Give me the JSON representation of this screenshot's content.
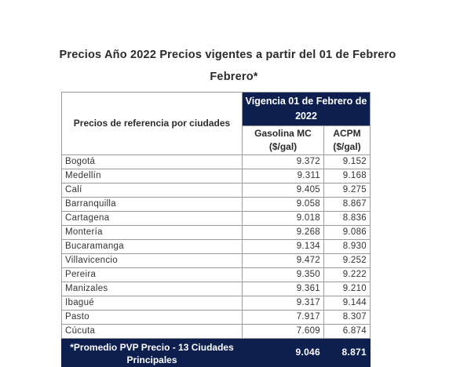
{
  "title_line1": "Precios Año 2022 Precios vigentes a partir del 01 de Febrero",
  "title_line2": "Febrero*",
  "table": {
    "header_city": "Precios de referencia por ciudades",
    "header_vigencia": "Vigencia 01 de Febrero de 2022",
    "header_gas": "Gasolina MC ($/gal)",
    "header_acpm": "ACPM ($/gal)",
    "rows": [
      {
        "city": "Bogotá",
        "gas": "9.372",
        "acpm": "9.152"
      },
      {
        "city": "Medellín",
        "gas": "9.311",
        "acpm": "9.168"
      },
      {
        "city": "Calí",
        "gas": "9.405",
        "acpm": "9.275"
      },
      {
        "city": "Barranquilla",
        "gas": "9.058",
        "acpm": "8.867"
      },
      {
        "city": "Cartagena",
        "gas": "9.018",
        "acpm": "8.836"
      },
      {
        "city": "Montería",
        "gas": "9.268",
        "acpm": "9.086"
      },
      {
        "city": "Bucaramanga",
        "gas": "9.134",
        "acpm": "8.930"
      },
      {
        "city": "Villavicencio",
        "gas": "9.472",
        "acpm": "9.252"
      },
      {
        "city": "Pereira",
        "gas": "9.350",
        "acpm": "9.222"
      },
      {
        "city": "Manizales",
        "gas": "9.361",
        "acpm": "9.210"
      },
      {
        "city": "Ibagué",
        "gas": "9.317",
        "acpm": "9.144"
      },
      {
        "city": "Pasto",
        "gas": "7.917",
        "acpm": "8.307"
      },
      {
        "city": "Cúcuta",
        "gas": "7.609",
        "acpm": "6.874"
      }
    ],
    "footer_label": "*Promedio PVP Precio - 13 Ciudades Principales",
    "footer_gas": "9.046",
    "footer_acpm": "8.871"
  },
  "colors": {
    "header_bg": "#0d1f4f",
    "header_text": "#ffffff"
  }
}
